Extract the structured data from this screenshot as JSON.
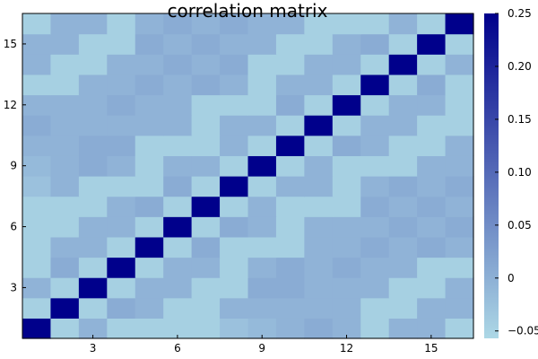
{
  "chart_data": {
    "type": "heatmap",
    "title": "correlation matrix",
    "xlabel": "",
    "ylabel": "",
    "x_ticks": [
      3,
      6,
      9,
      12,
      15
    ],
    "y_ticks": [
      3,
      6,
      9,
      12,
      15
    ],
    "n": 16,
    "colorbar": {
      "min": -0.057,
      "max": 0.25,
      "ticks": [
        -0.05,
        0,
        0.05,
        0.1,
        0.15,
        0.2,
        0.25
      ],
      "tick_labels": [
        "−0.05",
        "0",
        "0.05",
        "0.10",
        "0.15",
        "0.20",
        "0.25"
      ],
      "low_color": "#add8e6",
      "high_color": "#00008b"
    },
    "grid": false,
    "values": [
      [
        0.25,
        -0.045,
        -0.005,
        -0.045,
        -0.045,
        -0.045,
        -0.045,
        -0.025,
        -0.015,
        -0.005,
        0.005,
        -0.005,
        -0.045,
        -0.005,
        -0.005,
        -0.045
      ],
      [
        -0.045,
        0.25,
        -0.045,
        0.005,
        -0.005,
        -0.045,
        -0.045,
        -0.005,
        -0.005,
        -0.005,
        -0.005,
        -0.005,
        -0.045,
        -0.045,
        -0.005,
        -0.005
      ],
      [
        -0.005,
        -0.045,
        0.25,
        -0.045,
        -0.005,
        -0.005,
        -0.045,
        -0.045,
        0.005,
        0.005,
        -0.005,
        -0.005,
        -0.005,
        -0.045,
        -0.045,
        -0.005
      ],
      [
        -0.045,
        0.005,
        -0.045,
        0.25,
        -0.045,
        -0.005,
        -0.005,
        -0.045,
        -0.005,
        0.005,
        -0.005,
        0.005,
        -0.005,
        -0.005,
        -0.045,
        -0.045
      ],
      [
        -0.045,
        -0.005,
        -0.005,
        -0.045,
        0.25,
        -0.045,
        0.005,
        -0.045,
        -0.045,
        -0.045,
        -0.005,
        -0.005,
        0.005,
        -0.005,
        0.005,
        -0.005
      ],
      [
        -0.045,
        -0.045,
        -0.005,
        -0.005,
        -0.045,
        0.25,
        -0.045,
        0.005,
        -0.005,
        -0.045,
        -0.005,
        -0.005,
        -0.005,
        0.005,
        -0.005,
        0.005
      ],
      [
        -0.045,
        -0.045,
        -0.045,
        -0.005,
        0.005,
        -0.045,
        0.25,
        -0.045,
        -0.005,
        -0.045,
        -0.045,
        -0.045,
        0.005,
        -0.005,
        0.005,
        -0.005
      ],
      [
        -0.025,
        -0.005,
        -0.045,
        -0.045,
        -0.045,
        0.005,
        -0.045,
        0.25,
        -0.045,
        -0.005,
        -0.005,
        -0.045,
        -0.005,
        0.005,
        -0.005,
        0.005
      ],
      [
        -0.015,
        -0.005,
        0.005,
        -0.005,
        -0.045,
        -0.005,
        -0.005,
        -0.045,
        0.25,
        -0.045,
        -0.005,
        -0.045,
        -0.045,
        -0.045,
        -0.005,
        -0.005
      ],
      [
        -0.005,
        -0.005,
        0.005,
        0.005,
        -0.045,
        -0.045,
        -0.045,
        -0.005,
        -0.045,
        0.25,
        -0.045,
        0.005,
        -0.005,
        -0.045,
        -0.045,
        -0.005
      ],
      [
        0.005,
        -0.005,
        -0.005,
        -0.005,
        -0.005,
        -0.005,
        -0.045,
        -0.005,
        -0.005,
        -0.045,
        0.25,
        -0.045,
        -0.005,
        -0.005,
        -0.045,
        -0.045
      ],
      [
        -0.005,
        -0.005,
        -0.005,
        0.005,
        -0.005,
        -0.005,
        -0.045,
        -0.045,
        -0.045,
        0.005,
        -0.045,
        0.25,
        -0.045,
        -0.005,
        -0.005,
        -0.045
      ],
      [
        -0.045,
        -0.045,
        -0.005,
        -0.005,
        0.005,
        -0.005,
        0.005,
        -0.005,
        -0.045,
        -0.005,
        -0.005,
        -0.045,
        0.25,
        -0.045,
        0.005,
        -0.045
      ],
      [
        -0.005,
        -0.045,
        -0.045,
        -0.005,
        -0.005,
        0.005,
        -0.005,
        0.005,
        -0.045,
        -0.045,
        -0.005,
        -0.005,
        -0.045,
        0.25,
        -0.045,
        -0.005
      ],
      [
        -0.005,
        -0.005,
        -0.045,
        -0.045,
        0.005,
        -0.005,
        0.005,
        -0.005,
        -0.005,
        -0.045,
        -0.045,
        -0.005,
        0.005,
        -0.045,
        0.25,
        -0.045
      ],
      [
        -0.045,
        -0.005,
        -0.005,
        -0.045,
        -0.005,
        0.005,
        -0.005,
        0.005,
        -0.005,
        -0.005,
        -0.045,
        -0.045,
        -0.045,
        -0.005,
        -0.045,
        0.25
      ]
    ]
  }
}
